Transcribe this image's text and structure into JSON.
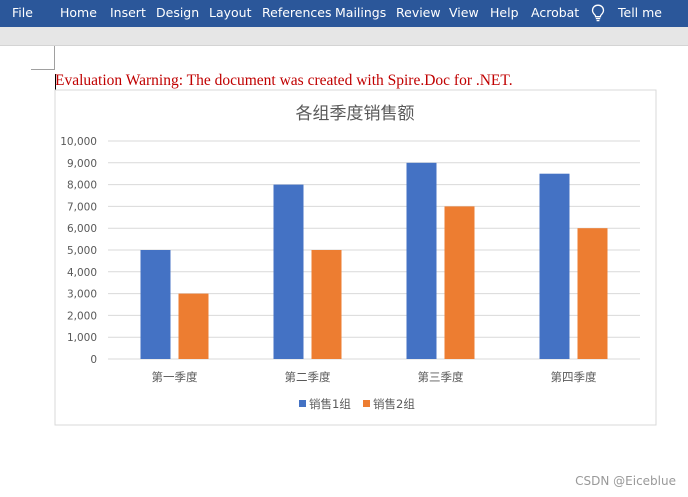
{
  "ribbon": {
    "tabs": [
      "File",
      "Home",
      "Insert",
      "Design",
      "Layout",
      "References",
      "Mailings",
      "Review",
      "View",
      "Help",
      "Acrobat"
    ],
    "tell_me": "Tell me",
    "bg_color": "#2b579a"
  },
  "document": {
    "warning_text": "Evaluation Warning: The document was created with Spire.Doc for .NET.",
    "warning_color": "#c00000"
  },
  "chart_data": {
    "type": "bar",
    "title": "各组季度销售额",
    "categories": [
      "第一季度",
      "第二季度",
      "第三季度",
      "第四季度"
    ],
    "series": [
      {
        "name": "销售1组",
        "values": [
          5000,
          8000,
          9000,
          8500
        ],
        "color": "#4472c4"
      },
      {
        "name": "销售2组",
        "values": [
          3000,
          5000,
          7000,
          6000
        ],
        "color": "#ed7d31"
      }
    ],
    "ylim": [
      0,
      10000
    ],
    "y_ticks": [
      "0",
      "1,000",
      "2,000",
      "3,000",
      "4,000",
      "5,000",
      "6,000",
      "7,000",
      "8,000",
      "9,000",
      "10,000"
    ],
    "grid": true,
    "legend_position": "bottom"
  },
  "watermark": "CSDN @Eiceblue"
}
